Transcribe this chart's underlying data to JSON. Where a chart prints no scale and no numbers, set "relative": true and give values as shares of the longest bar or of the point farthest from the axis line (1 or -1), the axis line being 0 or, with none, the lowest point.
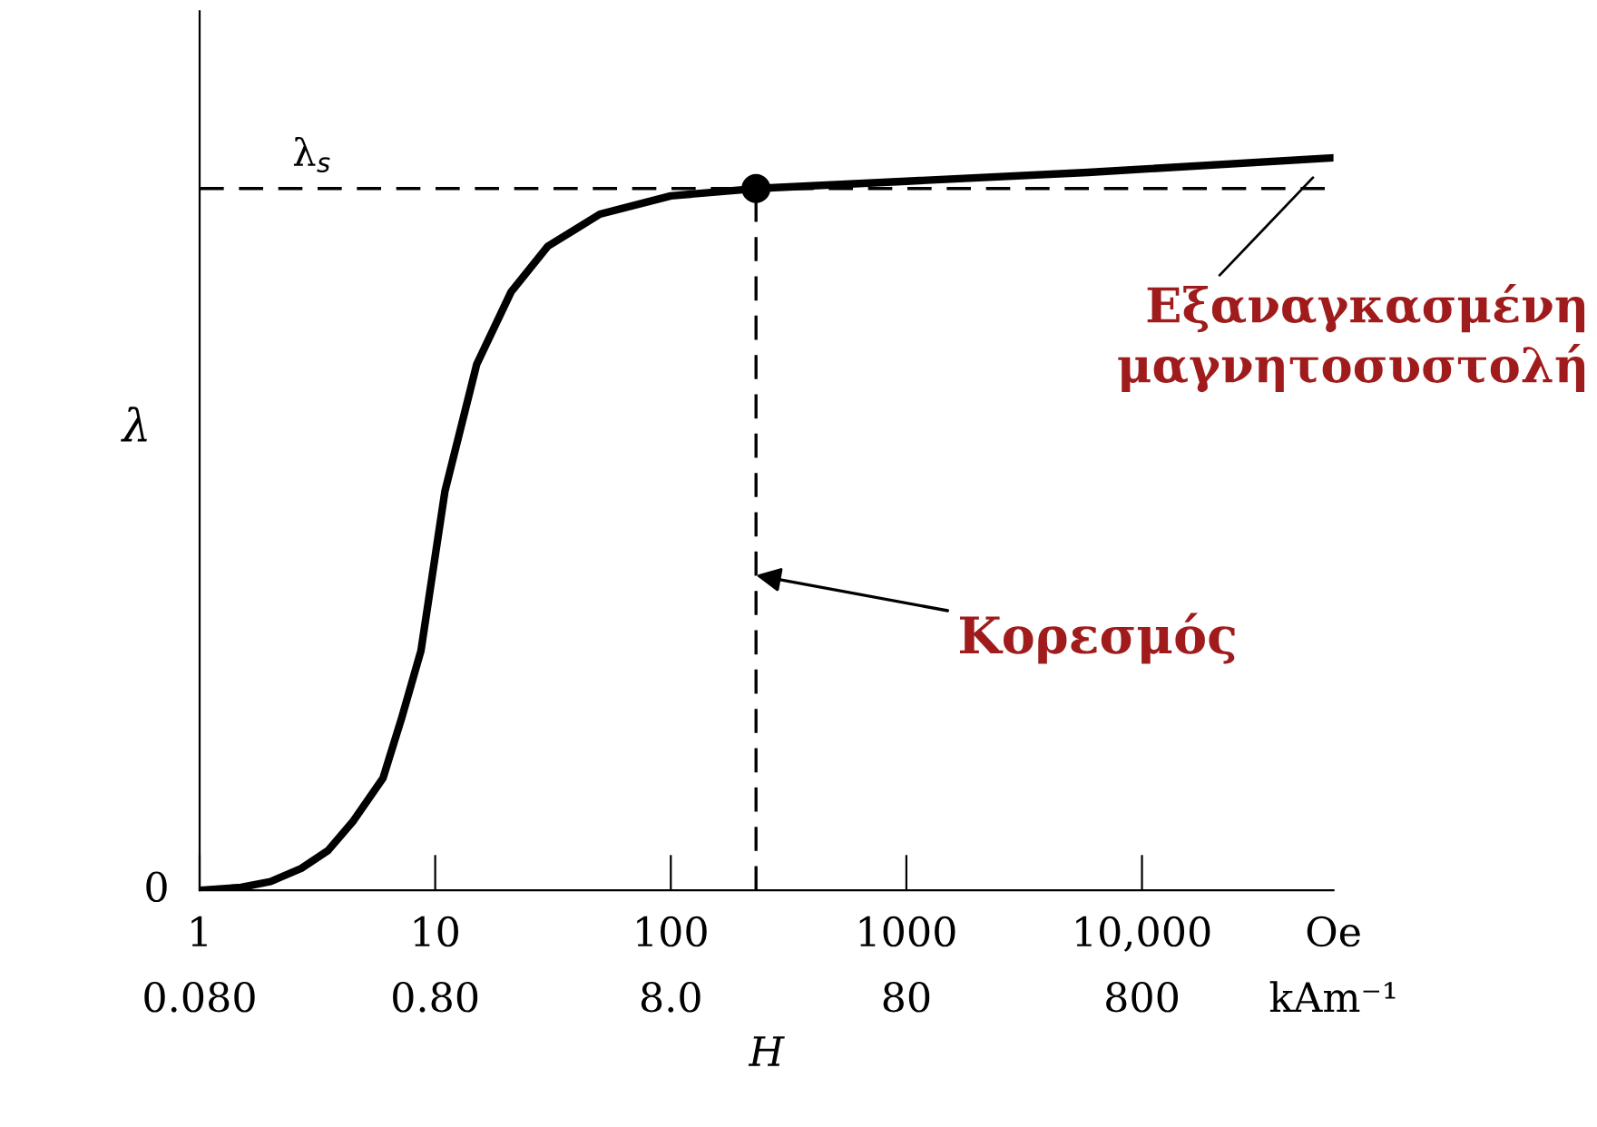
{
  "chart_data": {
    "type": "line",
    "relative": true,
    "xlabel": "H",
    "ylabel": "λ",
    "log": "x",
    "grid": false,
    "xlim": [
      1,
      65000
    ],
    "xticks": [
      1,
      10,
      100,
      1000,
      {
        "value": 10000,
        "label": "10,000"
      }
    ],
    "series": [
      {
        "color": "#000000",
        "marker": "none",
        "x": [
          1,
          1.5,
          2,
          2.7,
          3.5,
          4.5,
          6,
          7.2,
          8.7,
          11,
          15,
          21,
          30,
          50,
          100,
          230,
          1000,
          5900,
          65000
        ],
        "values": [
          0,
          0.004,
          0.012,
          0.03,
          0.054,
          0.095,
          0.153,
          0.235,
          0.327,
          0.545,
          0.718,
          0.817,
          0.879,
          0.923,
          0.948,
          0.958,
          0.968,
          0.98,
          1.0
        ]
      },
      {
        "type": "scatter",
        "color": "#000000",
        "marker": "circle",
        "x": [
          230
        ],
        "values": [
          0.958
        ]
      }
    ],
    "ref_lines": [
      {
        "axis": "y",
        "value": 0.958,
        "label": "λ$_{s}$",
        "line_style": "dashed",
        "color": "#000000"
      },
      {
        "axis": "x",
        "value": 230,
        "line_style": "dashed",
        "color": "#000000"
      }
    ],
    "annotations": [
      "0",
      "Oe",
      "kAm⁻¹",
      {
        "text": "Κορεσμός",
        "x": 230,
        "y": 0.43
      },
      "Εξαναγκασμένη\nμαγνητοσυστολή",
      "0.080",
      "0.80",
      "8.0",
      "80",
      "800"
    ]
  }
}
